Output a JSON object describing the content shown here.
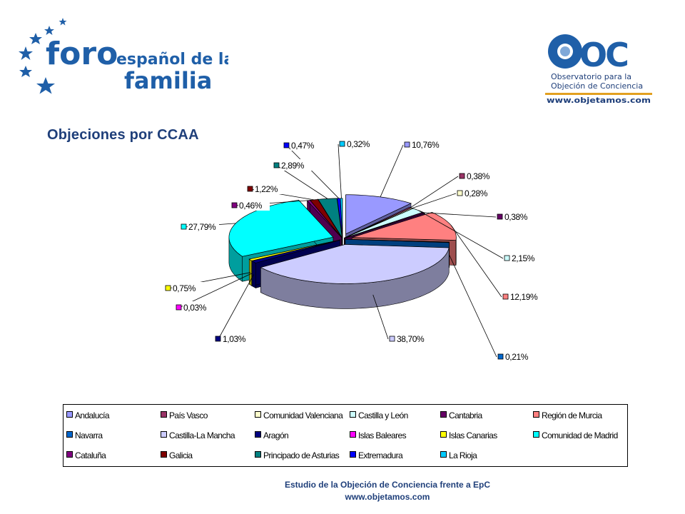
{
  "header": {
    "left_logo": {
      "word_main": "foro",
      "word_top": "español de la",
      "word_bottom": "familia"
    },
    "right_logo": {
      "acronym": "OC",
      "line1": "Observatorio para la",
      "line2": "Objeción de Conciencia",
      "url": "www.objetamos.com"
    }
  },
  "slide_title": "Objeciones por CCAA",
  "chart_data": {
    "type": "pie",
    "variant": "3d-exploded",
    "legend_position": "bottom",
    "slices": [
      {
        "name": "Andalucía",
        "value": 10.76,
        "label": "10,76%",
        "color": "#9999ff"
      },
      {
        "name": "País Vasco",
        "value": 0.38,
        "label": "0,38%",
        "color": "#993366"
      },
      {
        "name": "Comunidad Valenciana",
        "value": 0.28,
        "label": "0,28%",
        "color": "#ffffcc"
      },
      {
        "name": "Castilla y León",
        "value": 2.15,
        "label": "2,15%",
        "color": "#ccffff"
      },
      {
        "name": "Cantabria",
        "value": 0.38,
        "label": "0,38%",
        "color": "#660066"
      },
      {
        "name": "Región de Murcia",
        "value": 12.19,
        "label": "12,19%",
        "color": "#ff8080"
      },
      {
        "name": "Navarra",
        "value": 0.21,
        "label": "0,21%",
        "color": "#0066cc"
      },
      {
        "name": "Castilla-La Mancha",
        "value": 38.7,
        "label": "38,70%",
        "color": "#ccccff"
      },
      {
        "name": "Aragón",
        "value": 1.03,
        "label": "1,03%",
        "color": "#000080"
      },
      {
        "name": "Islas Baleares",
        "value": 0.03,
        "label": "0,03%",
        "color": "#ff00ff"
      },
      {
        "name": "Islas Canarias",
        "value": 0.75,
        "label": "0,75%",
        "color": "#ffff00"
      },
      {
        "name": "Comunidad de Madrid",
        "value": 27.79,
        "label": "27,79%",
        "color": "#00ffff"
      },
      {
        "name": "Cataluña",
        "value": 0.46,
        "label": "0,46%",
        "color": "#800080"
      },
      {
        "name": "Galicia",
        "value": 1.22,
        "label": "1,22%",
        "color": "#800000"
      },
      {
        "name": "Principado de Asturias",
        "value": 2.89,
        "label": "2,89%",
        "color": "#008080"
      },
      {
        "name": "Extremadura",
        "value": 0.47,
        "label": "0,47%",
        "color": "#0000ff"
      },
      {
        "name": "La Rioja",
        "value": 0.32,
        "label": "0,32%",
        "color": "#00ccff"
      }
    ]
  },
  "footer": {
    "line1": "Estudio de la Objeción de Conciencia frente a EpC",
    "line2": "www.objetamos.com"
  }
}
